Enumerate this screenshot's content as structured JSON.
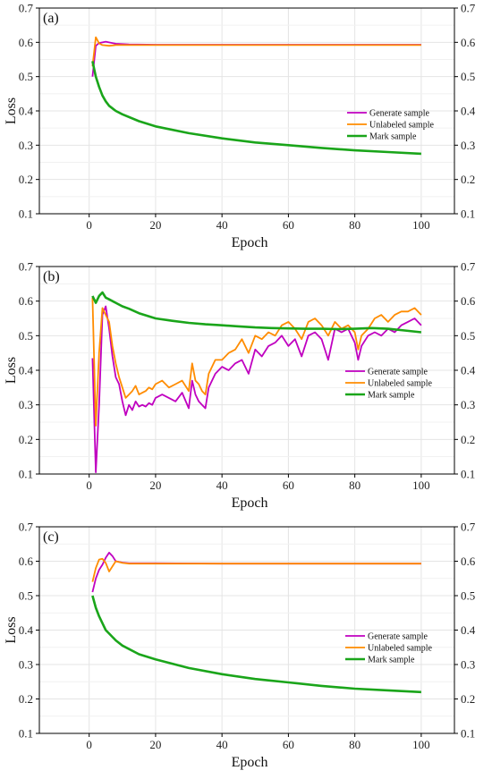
{
  "chart_data": [
    {
      "type": "line",
      "panel_label": "(a)",
      "xlabel": "Epoch",
      "ylabel": "Loss",
      "xlim": [
        -15,
        110
      ],
      "ylim": [
        0.1,
        0.7
      ],
      "x_ticks": [
        0,
        20,
        40,
        60,
        80,
        100
      ],
      "y_ticks": [
        0.1,
        0.2,
        0.3,
        0.4,
        0.5,
        0.6,
        0.7
      ],
      "grid": true,
      "legend_position": "right-middle",
      "series": [
        {
          "name": "Generate sample",
          "color": "#c000c0",
          "x": [
            1,
            2,
            3,
            5,
            8,
            12,
            20,
            40,
            60,
            80,
            100
          ],
          "y": [
            0.5,
            0.59,
            0.598,
            0.602,
            0.596,
            0.594,
            0.593,
            0.593,
            0.593,
            0.593,
            0.593
          ]
        },
        {
          "name": "Unlabeled sample",
          "color": "#ff8c00",
          "x": [
            1,
            2,
            3,
            4,
            6,
            8,
            12,
            20,
            40,
            60,
            80,
            100
          ],
          "y": [
            0.53,
            0.615,
            0.597,
            0.592,
            0.59,
            0.592,
            0.592,
            0.592,
            0.592,
            0.592,
            0.592,
            0.592
          ]
        },
        {
          "name": "Mark sample",
          "color": "#1aa51a",
          "x": [
            1,
            2,
            3,
            4,
            5,
            6,
            8,
            10,
            15,
            20,
            30,
            40,
            50,
            60,
            70,
            80,
            90,
            100
          ],
          "y": [
            0.545,
            0.5,
            0.47,
            0.445,
            0.428,
            0.415,
            0.4,
            0.39,
            0.37,
            0.355,
            0.335,
            0.32,
            0.308,
            0.3,
            0.292,
            0.285,
            0.28,
            0.275
          ]
        }
      ]
    },
    {
      "type": "line",
      "panel_label": "(b)",
      "xlabel": "Epoch",
      "ylabel": "Loss",
      "xlim": [
        -15,
        110
      ],
      "ylim": [
        0.1,
        0.7
      ],
      "x_ticks": [
        0,
        20,
        40,
        60,
        80,
        100
      ],
      "y_ticks": [
        0.1,
        0.2,
        0.3,
        0.4,
        0.5,
        0.6,
        0.7
      ],
      "grid": true,
      "legend_position": "bottom-right",
      "series": [
        {
          "name": "Generate sample",
          "color": "#c000c0",
          "x": [
            1,
            2,
            3,
            4,
            5,
            6,
            7,
            8,
            9,
            10,
            11,
            12,
            13,
            14,
            15,
            16,
            17,
            18,
            19,
            20,
            22,
            24,
            26,
            28,
            30,
            31,
            32,
            33,
            34,
            35,
            36,
            38,
            40,
            42,
            44,
            46,
            48,
            50,
            52,
            54,
            56,
            58,
            60,
            62,
            64,
            66,
            68,
            70,
            72,
            74,
            76,
            78,
            80,
            81,
            82,
            84,
            86,
            88,
            90,
            92,
            94,
            96,
            98,
            100
          ],
          "y": [
            0.435,
            0.105,
            0.3,
            0.56,
            0.585,
            0.52,
            0.44,
            0.38,
            0.36,
            0.31,
            0.27,
            0.3,
            0.285,
            0.31,
            0.295,
            0.3,
            0.295,
            0.305,
            0.3,
            0.32,
            0.33,
            0.32,
            0.31,
            0.335,
            0.29,
            0.37,
            0.33,
            0.31,
            0.3,
            0.29,
            0.35,
            0.39,
            0.41,
            0.4,
            0.42,
            0.43,
            0.39,
            0.46,
            0.44,
            0.47,
            0.48,
            0.5,
            0.47,
            0.49,
            0.44,
            0.5,
            0.51,
            0.49,
            0.43,
            0.52,
            0.51,
            0.52,
            0.48,
            0.43,
            0.47,
            0.5,
            0.51,
            0.5,
            0.52,
            0.51,
            0.53,
            0.54,
            0.55,
            0.53
          ]
        },
        {
          "name": "Unlabeled sample",
          "color": "#ff8c00",
          "x": [
            1,
            2,
            3,
            4,
            5,
            6,
            7,
            8,
            9,
            10,
            11,
            12,
            13,
            14,
            15,
            16,
            17,
            18,
            19,
            20,
            22,
            24,
            26,
            28,
            30,
            31,
            32,
            33,
            34,
            35,
            36,
            38,
            40,
            42,
            44,
            46,
            48,
            50,
            52,
            54,
            56,
            58,
            60,
            62,
            64,
            66,
            68,
            70,
            72,
            74,
            76,
            78,
            80,
            81,
            82,
            84,
            86,
            88,
            90,
            92,
            94,
            96,
            98,
            100
          ],
          "y": [
            0.61,
            0.24,
            0.45,
            0.58,
            0.56,
            0.54,
            0.47,
            0.42,
            0.38,
            0.35,
            0.32,
            0.33,
            0.34,
            0.355,
            0.33,
            0.335,
            0.34,
            0.35,
            0.345,
            0.36,
            0.37,
            0.35,
            0.36,
            0.37,
            0.34,
            0.42,
            0.37,
            0.36,
            0.34,
            0.33,
            0.39,
            0.43,
            0.43,
            0.45,
            0.46,
            0.49,
            0.45,
            0.5,
            0.49,
            0.51,
            0.5,
            0.53,
            0.54,
            0.52,
            0.49,
            0.54,
            0.55,
            0.53,
            0.5,
            0.54,
            0.52,
            0.53,
            0.51,
            0.46,
            0.5,
            0.52,
            0.55,
            0.56,
            0.54,
            0.56,
            0.57,
            0.57,
            0.58,
            0.56
          ]
        },
        {
          "name": "Mark sample",
          "color": "#1aa51a",
          "x": [
            1,
            2,
            3,
            4,
            5,
            6,
            8,
            10,
            12,
            15,
            20,
            25,
            30,
            35,
            40,
            45,
            50,
            55,
            60,
            65,
            70,
            75,
            80,
            85,
            90,
            95,
            100
          ],
          "y": [
            0.615,
            0.595,
            0.615,
            0.625,
            0.61,
            0.605,
            0.595,
            0.585,
            0.578,
            0.565,
            0.55,
            0.543,
            0.537,
            0.533,
            0.53,
            0.527,
            0.524,
            0.522,
            0.521,
            0.52,
            0.52,
            0.519,
            0.52,
            0.522,
            0.52,
            0.515,
            0.51
          ]
        }
      ]
    },
    {
      "type": "line",
      "panel_label": "(c)",
      "xlabel": "Epoch",
      "ylabel": "Loss",
      "xlim": [
        -15,
        110
      ],
      "ylim": [
        0.1,
        0.7
      ],
      "x_ticks": [
        0,
        20,
        40,
        60,
        80,
        100
      ],
      "y_ticks": [
        0.1,
        0.2,
        0.3,
        0.4,
        0.5,
        0.6,
        0.7
      ],
      "grid": true,
      "legend_position": "right-middle",
      "series": [
        {
          "name": "Generate sample",
          "color": "#c000c0",
          "x": [
            1,
            2,
            3,
            4,
            5,
            6,
            7,
            8,
            9,
            10,
            12,
            15,
            20,
            40,
            60,
            80,
            100
          ],
          "y": [
            0.51,
            0.55,
            0.575,
            0.59,
            0.61,
            0.625,
            0.615,
            0.6,
            0.598,
            0.596,
            0.594,
            0.594,
            0.594,
            0.593,
            0.593,
            0.593,
            0.593
          ]
        },
        {
          "name": "Unlabeled sample",
          "color": "#ff8c00",
          "x": [
            1,
            2,
            3,
            4,
            5,
            6,
            7,
            8,
            10,
            12,
            15,
            20,
            40,
            60,
            80,
            100
          ],
          "y": [
            0.54,
            0.58,
            0.605,
            0.607,
            0.595,
            0.57,
            0.585,
            0.6,
            0.595,
            0.593,
            0.593,
            0.593,
            0.593,
            0.593,
            0.593,
            0.593
          ]
        },
        {
          "name": "Mark sample",
          "color": "#1aa51a",
          "x": [
            1,
            2,
            3,
            4,
            5,
            6,
            8,
            10,
            15,
            20,
            30,
            40,
            50,
            60,
            70,
            80,
            90,
            100
          ],
          "y": [
            0.5,
            0.465,
            0.44,
            0.42,
            0.4,
            0.39,
            0.37,
            0.355,
            0.33,
            0.315,
            0.29,
            0.272,
            0.258,
            0.248,
            0.238,
            0.23,
            0.225,
            0.22
          ]
        }
      ]
    }
  ]
}
